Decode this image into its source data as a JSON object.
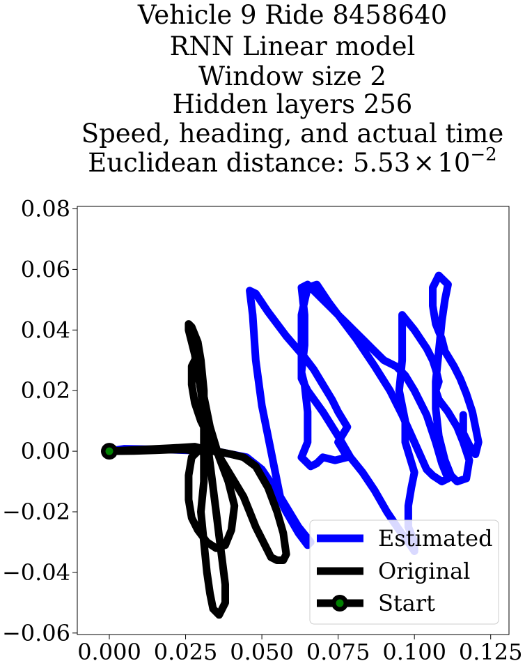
{
  "title_lines": [
    "Vehicle 9 Ride 8458640",
    "RNN Linear model",
    "Window size 2",
    "Hidden layers 256",
    "Speed, heading, and actual time"
  ],
  "distance": {
    "prefix": "Euclidean distance: ",
    "mantissa": "5.53",
    "times": "×",
    "base": "10",
    "exponent": "−2"
  },
  "colors": {
    "estimated": "#0000ff",
    "original": "#000000",
    "start_fill": "#008000",
    "start_edge": "#000000"
  },
  "chart_data": {
    "type": "line",
    "xlim": [
      -0.0105,
      0.131
    ],
    "ylim": [
      -0.0605,
      0.0808
    ],
    "xticks": [
      0.0,
      0.025,
      0.05,
      0.075,
      0.1,
      0.125
    ],
    "xtick_labels": [
      "0.000",
      "0.025",
      "0.050",
      "0.075",
      "0.100",
      "0.125"
    ],
    "yticks": [
      -0.06,
      -0.04,
      -0.02,
      0.0,
      0.02,
      0.04,
      0.06,
      0.08
    ],
    "ytick_labels": [
      "−0.06",
      "−0.04",
      "−0.02",
      "0.00",
      "0.02",
      "0.04",
      "0.06",
      "0.08"
    ],
    "grid": false,
    "legend_position": "lower-right",
    "series": [
      {
        "name": "Estimated",
        "style": "line",
        "points": [
          [
            0.0,
            0.0
          ],
          [
            0.005,
            0.0008
          ],
          [
            0.02,
            0.0005
          ],
          [
            0.035,
            0.0
          ],
          [
            0.045,
            -0.002
          ],
          [
            0.05,
            -0.006
          ],
          [
            0.054,
            -0.012
          ],
          [
            0.058,
            -0.02
          ],
          [
            0.062,
            -0.027
          ],
          [
            0.065,
            -0.031
          ],
          [
            0.066,
            -0.03
          ],
          [
            0.062,
            -0.025
          ],
          [
            0.056,
            -0.015
          ],
          [
            0.054,
            -0.005
          ],
          [
            0.052,
            0.005
          ],
          [
            0.05,
            0.015
          ],
          [
            0.048,
            0.03
          ],
          [
            0.047,
            0.045
          ],
          [
            0.046,
            0.053
          ],
          [
            0.048,
            0.052
          ],
          [
            0.052,
            0.046
          ],
          [
            0.058,
            0.038
          ],
          [
            0.064,
            0.031
          ],
          [
            0.067,
            0.027
          ],
          [
            0.07,
            0.022
          ],
          [
            0.073,
            0.017
          ],
          [
            0.075,
            0.013
          ],
          [
            0.078,
            0.008
          ],
          [
            0.075,
            0.003
          ],
          [
            0.078,
            -0.002
          ],
          [
            0.074,
            -0.003
          ],
          [
            0.07,
            -0.002
          ],
          [
            0.068,
            -0.004
          ],
          [
            0.066,
            -0.005
          ],
          [
            0.063,
            -0.002
          ],
          [
            0.065,
            0.003
          ],
          [
            0.065,
            0.013
          ],
          [
            0.064,
            0.022
          ],
          [
            0.063,
            0.026
          ],
          [
            0.064,
            0.035
          ],
          [
            0.064,
            0.045
          ],
          [
            0.063,
            0.054
          ],
          [
            0.065,
            0.055
          ],
          [
            0.07,
            0.05
          ],
          [
            0.073,
            0.047
          ],
          [
            0.075,
            0.045
          ],
          [
            0.078,
            0.042
          ],
          [
            0.08,
            0.04
          ],
          [
            0.084,
            0.036
          ],
          [
            0.086,
            0.034
          ],
          [
            0.09,
            0.03
          ],
          [
            0.094,
            0.028
          ],
          [
            0.097,
            0.025
          ],
          [
            0.1,
            0.02
          ],
          [
            0.104,
            0.012
          ],
          [
            0.107,
            0.003
          ],
          [
            0.109,
            -0.004
          ],
          [
            0.111,
            -0.009
          ],
          [
            0.109,
            -0.01
          ],
          [
            0.106,
            -0.008
          ],
          [
            0.104,
            -0.006
          ],
          [
            0.1,
            0.003
          ],
          [
            0.096,
            0.012
          ],
          [
            0.092,
            0.02
          ],
          [
            0.087,
            0.028
          ],
          [
            0.081,
            0.037
          ],
          [
            0.075,
            0.045
          ],
          [
            0.072,
            0.049
          ],
          [
            0.07,
            0.052
          ],
          [
            0.068,
            0.055
          ],
          [
            0.065,
            0.054
          ],
          [
            0.063,
            0.045
          ],
          [
            0.063,
            0.036
          ],
          [
            0.063,
            0.028
          ],
          [
            0.063,
            0.024
          ],
          [
            0.065,
            0.02
          ],
          [
            0.07,
            0.013
          ],
          [
            0.075,
            0.005
          ],
          [
            0.079,
            -0.002
          ],
          [
            0.083,
            -0.007
          ],
          [
            0.087,
            -0.013
          ],
          [
            0.091,
            -0.02
          ],
          [
            0.095,
            -0.026
          ],
          [
            0.098,
            -0.03
          ],
          [
            0.1,
            -0.033
          ],
          [
            0.1,
            -0.03
          ],
          [
            0.098,
            -0.025
          ],
          [
            0.098,
            -0.018
          ],
          [
            0.099,
            -0.012
          ],
          [
            0.1,
            -0.007
          ],
          [
            0.097,
            0.003
          ],
          [
            0.097,
            0.01
          ],
          [
            0.095,
            0.02
          ],
          [
            0.096,
            0.03
          ],
          [
            0.096,
            0.04
          ],
          [
            0.096,
            0.045
          ],
          [
            0.1,
            0.04
          ],
          [
            0.104,
            0.034
          ],
          [
            0.106,
            0.03
          ],
          [
            0.107,
            0.027
          ],
          [
            0.108,
            0.023
          ],
          [
            0.107,
            0.02
          ],
          [
            0.108,
            0.017
          ],
          [
            0.111,
            0.013
          ],
          [
            0.114,
            0.008
          ],
          [
            0.116,
            0.003
          ],
          [
            0.118,
            -0.003
          ],
          [
            0.117,
            -0.009
          ],
          [
            0.114,
            -0.01
          ],
          [
            0.112,
            -0.008
          ],
          [
            0.11,
            -0.003
          ],
          [
            0.108,
            0.005
          ],
          [
            0.107,
            0.014
          ],
          [
            0.107,
            0.023
          ],
          [
            0.108,
            0.033
          ],
          [
            0.109,
            0.043
          ],
          [
            0.11,
            0.05
          ],
          [
            0.111,
            0.055
          ],
          [
            0.108,
            0.058
          ],
          [
            0.106,
            0.054
          ],
          [
            0.106,
            0.048
          ],
          [
            0.107,
            0.042
          ],
          [
            0.109,
            0.037
          ],
          [
            0.11,
            0.033
          ],
          [
            0.113,
            0.028
          ],
          [
            0.115,
            0.024
          ],
          [
            0.117,
            0.019
          ],
          [
            0.119,
            0.013
          ],
          [
            0.12,
            0.008
          ],
          [
            0.121,
            0.003
          ],
          [
            0.12,
            -0.001
          ],
          [
            0.118,
            0.002
          ],
          [
            0.116,
            0.006
          ],
          [
            0.116,
            0.012
          ]
        ]
      },
      {
        "name": "Original",
        "style": "line",
        "points": [
          [
            0.0,
            0.0
          ],
          [
            0.01,
            0.0005
          ],
          [
            0.02,
            0.001
          ],
          [
            0.028,
            0.0015
          ],
          [
            0.03,
            0.001
          ],
          [
            0.027,
            -0.002
          ],
          [
            0.026,
            -0.008
          ],
          [
            0.026,
            -0.016
          ],
          [
            0.027,
            -0.022
          ],
          [
            0.029,
            -0.026
          ],
          [
            0.032,
            -0.03
          ],
          [
            0.035,
            -0.032
          ],
          [
            0.038,
            -0.031
          ],
          [
            0.04,
            -0.026
          ],
          [
            0.041,
            -0.018
          ],
          [
            0.039,
            -0.01
          ],
          [
            0.036,
            -0.002
          ],
          [
            0.033,
            0.008
          ],
          [
            0.031,
            0.018
          ],
          [
            0.029,
            0.026
          ],
          [
            0.028,
            0.032
          ],
          [
            0.027,
            0.036
          ],
          [
            0.026,
            0.04
          ],
          [
            0.026,
            0.042
          ],
          [
            0.027,
            0.041
          ],
          [
            0.029,
            0.036
          ],
          [
            0.03,
            0.03
          ],
          [
            0.031,
            0.02
          ],
          [
            0.031,
            0.01
          ],
          [
            0.031,
            0.0
          ],
          [
            0.031,
            -0.01
          ],
          [
            0.03,
            -0.02
          ],
          [
            0.031,
            -0.03
          ],
          [
            0.032,
            -0.04
          ],
          [
            0.033,
            -0.047
          ],
          [
            0.034,
            -0.052
          ],
          [
            0.036,
            -0.054
          ],
          [
            0.038,
            -0.05
          ],
          [
            0.038,
            -0.044
          ],
          [
            0.037,
            -0.036
          ],
          [
            0.036,
            -0.028
          ],
          [
            0.035,
            -0.02
          ],
          [
            0.034,
            -0.012
          ],
          [
            0.033,
            -0.004
          ],
          [
            0.032,
            0.004
          ],
          [
            0.031,
            0.012
          ],
          [
            0.03,
            0.02
          ],
          [
            0.029,
            0.026
          ],
          [
            0.028,
            0.03
          ],
          [
            0.027,
            0.028
          ],
          [
            0.027,
            0.022
          ],
          [
            0.028,
            0.016
          ],
          [
            0.03,
            0.01
          ],
          [
            0.032,
            0.006
          ],
          [
            0.035,
            0.0
          ],
          [
            0.038,
            -0.005
          ],
          [
            0.041,
            -0.01
          ],
          [
            0.044,
            -0.015
          ],
          [
            0.046,
            -0.02
          ],
          [
            0.048,
            -0.025
          ],
          [
            0.05,
            -0.029
          ],
          [
            0.052,
            -0.033
          ],
          [
            0.053,
            -0.035
          ],
          [
            0.055,
            -0.036
          ],
          [
            0.057,
            -0.036
          ],
          [
            0.058,
            -0.034
          ],
          [
            0.057,
            -0.027
          ],
          [
            0.055,
            -0.02
          ],
          [
            0.052,
            -0.012
          ],
          [
            0.048,
            -0.005
          ],
          [
            0.044,
            -0.002
          ],
          [
            0.04,
            -0.001
          ],
          [
            0.035,
            0.0
          ],
          [
            0.03,
            0.0
          ],
          [
            0.025,
            0.0005
          ],
          [
            0.02,
            0.0005
          ],
          [
            0.015,
            0.0003
          ],
          [
            0.008,
            0.0001
          ],
          [
            0.0,
            0.0
          ]
        ]
      },
      {
        "name": "Start",
        "style": "marker",
        "points": [
          [
            0.0,
            0.0
          ]
        ]
      }
    ]
  }
}
